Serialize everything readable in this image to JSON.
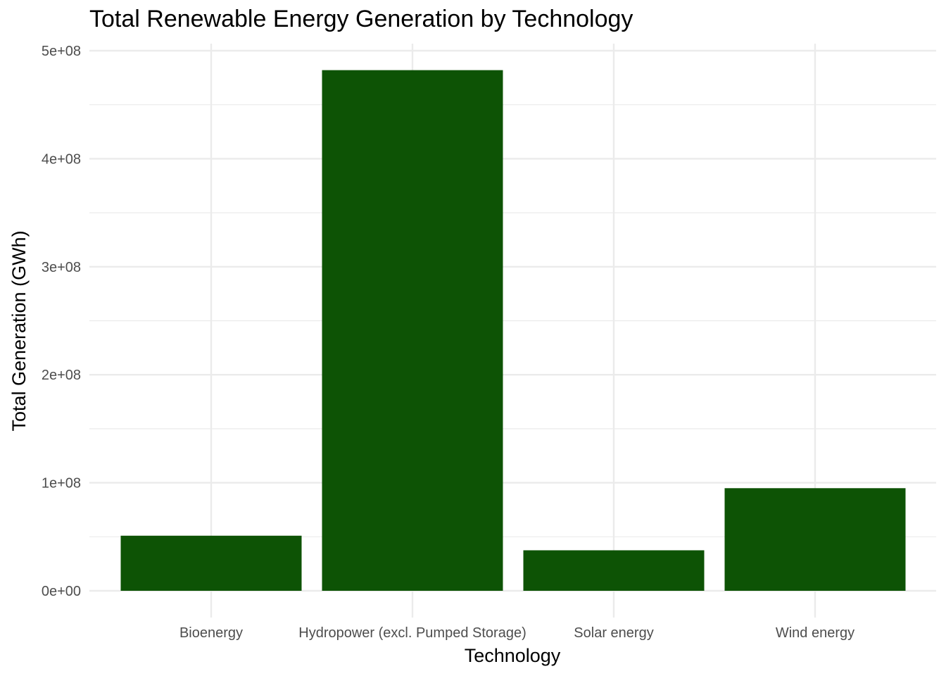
{
  "chart_data": {
    "type": "bar",
    "title": "Total Renewable Energy Generation by Technology",
    "xlabel": "Technology",
    "ylabel": "Total Generation (GWh)",
    "categories": [
      "Bioenergy",
      "Hydropower (excl. Pumped Storage)",
      "Solar energy",
      "Wind energy"
    ],
    "values": [
      51000000,
      482000000,
      37500000,
      95000000
    ],
    "ylim": [
      0,
      500000000
    ],
    "yticks": [
      0,
      100000000,
      200000000,
      300000000,
      400000000,
      500000000
    ],
    "ytick_labels": [
      "0e+00",
      "1e+08",
      "2e+08",
      "3e+08",
      "4e+08",
      "5e+08"
    ],
    "grid": true,
    "bar_color": "#0d5305",
    "grid_color": "#ebebeb"
  }
}
